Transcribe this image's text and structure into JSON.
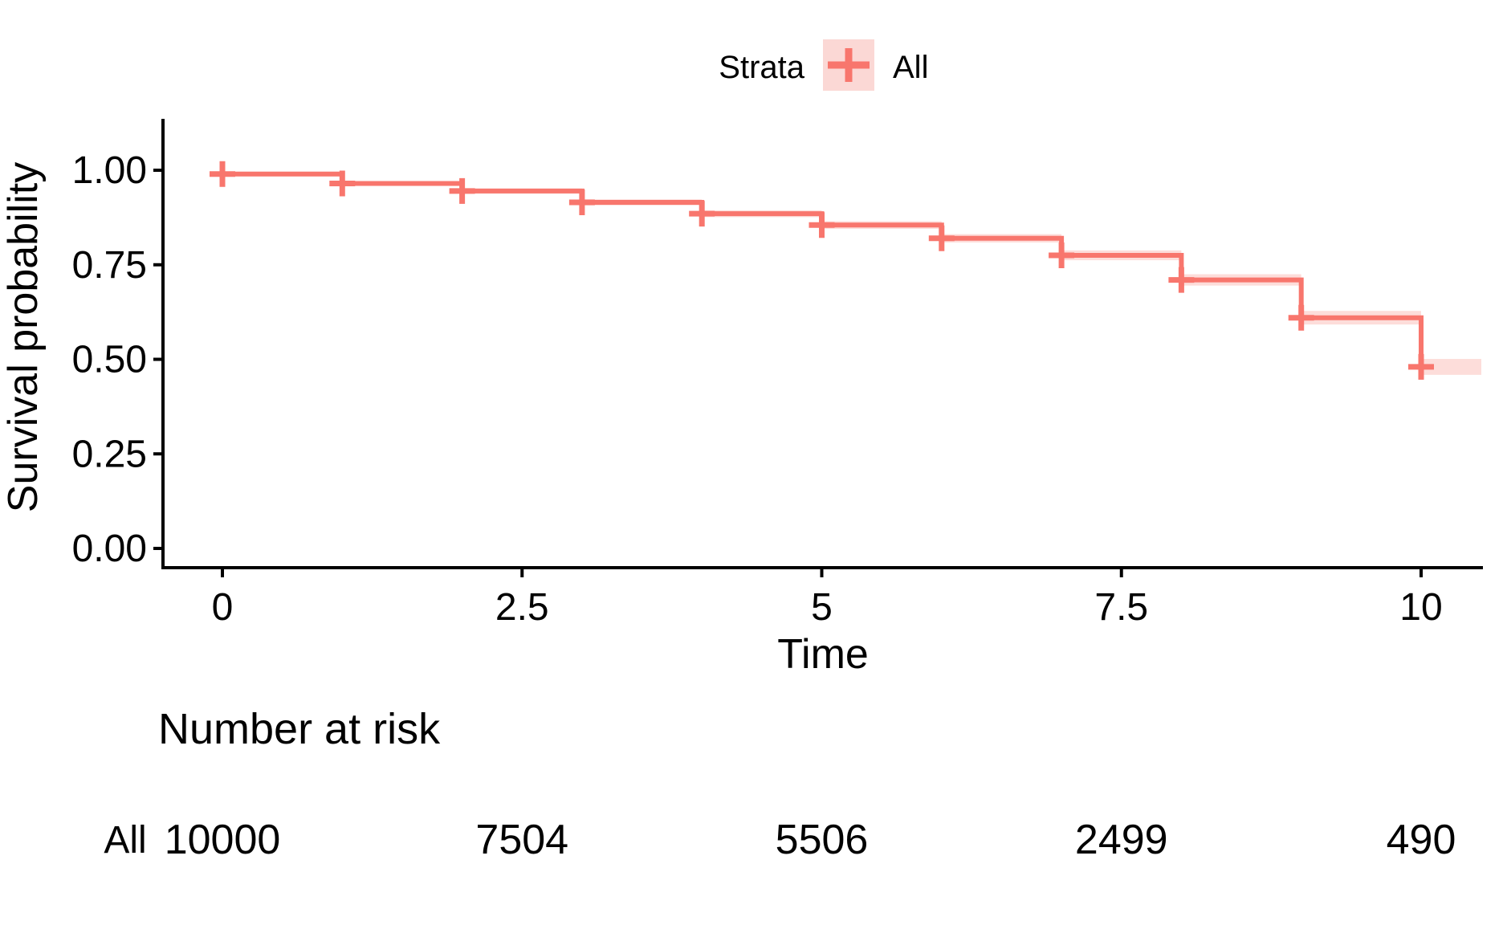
{
  "legend": {
    "title": "Strata",
    "entries": [
      {
        "label": "All"
      }
    ]
  },
  "axes": {
    "x": {
      "title": "Time",
      "ticks": [
        {
          "label": "0",
          "value": 0
        },
        {
          "label": "2.5",
          "value": 2.5
        },
        {
          "label": "5",
          "value": 5
        },
        {
          "label": "7.5",
          "value": 7.5
        },
        {
          "label": "10",
          "value": 10
        }
      ]
    },
    "y": {
      "title": "Survival probability",
      "ticks": [
        {
          "label": "1.00",
          "value": 1.0
        },
        {
          "label": "0.75",
          "value": 0.75
        },
        {
          "label": "0.50",
          "value": 0.5
        },
        {
          "label": "0.25",
          "value": 0.25
        },
        {
          "label": "0.00",
          "value": 0.0
        }
      ]
    }
  },
  "risk_table": {
    "title": "Number at risk",
    "rows": [
      {
        "label": "All",
        "counts": [
          {
            "time": 0,
            "value": "10000"
          },
          {
            "time": 2.5,
            "value": "7504"
          },
          {
            "time": 5,
            "value": "5506"
          },
          {
            "time": 7.5,
            "value": "2499"
          },
          {
            "time": 10,
            "value": "490"
          }
        ]
      }
    ]
  },
  "colors": {
    "accent": "#F8766D",
    "ribbon": "#F8766D",
    "ribbon_opacity": 0.25,
    "legend_key_bg": "#FBD8D5",
    "axis": "#000000",
    "text": "#000000"
  },
  "chart_data": {
    "type": "km-step",
    "title": "",
    "xlabel": "Time",
    "ylabel": "Survival probability",
    "xlim": [
      0,
      10
    ],
    "ylim": [
      0,
      1
    ],
    "x_ticks": [
      0,
      2.5,
      5,
      7.5,
      10
    ],
    "y_ticks": [
      0,
      0.25,
      0.5,
      0.75,
      1
    ],
    "grid": false,
    "legend_position": "top",
    "series": [
      {
        "name": "All",
        "step_times": [
          0,
          1,
          2,
          3,
          4,
          5,
          6,
          7,
          8,
          9,
          10
        ],
        "survival": [
          0.99,
          0.965,
          0.945,
          0.915,
          0.885,
          0.855,
          0.82,
          0.775,
          0.71,
          0.61,
          0.48
        ],
        "censor_times": [
          0,
          1,
          2,
          3,
          4,
          5,
          6,
          7,
          8,
          9,
          10
        ],
        "censor_surv": [
          0.99,
          0.965,
          0.945,
          0.915,
          0.885,
          0.855,
          0.82,
          0.775,
          0.71,
          0.61,
          0.48
        ],
        "ci_half": [
          0.006,
          0.006,
          0.007,
          0.008,
          0.009,
          0.01,
          0.011,
          0.013,
          0.015,
          0.018,
          0.021
        ]
      }
    ],
    "number_at_risk": {
      "times": [
        0,
        2.5,
        5,
        7.5,
        10
      ],
      "counts": [
        10000,
        7504,
        5506,
        2499,
        490
      ]
    }
  }
}
